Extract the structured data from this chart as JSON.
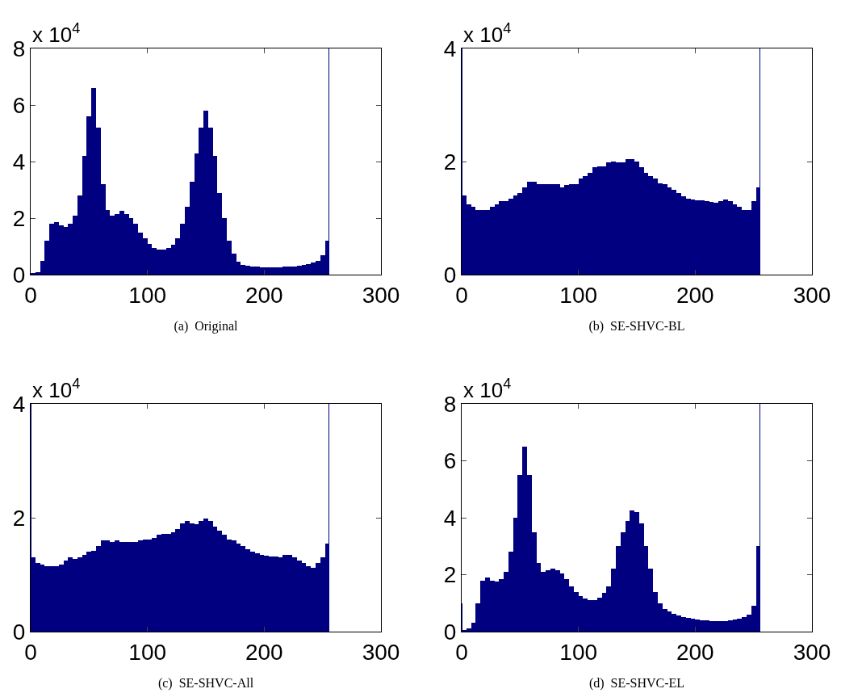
{
  "chart_data": [
    {
      "type": "histogram",
      "xlabel": "(a)  Original",
      "annotations": [
        "x 10$^{4}$"
      ],
      "color": "#000080",
      "xlim": [
        0,
        300
      ],
      "xticks": [
        0,
        100,
        200,
        300
      ],
      "ylim": [
        0,
        8
      ],
      "yticks": [
        0,
        2,
        4,
        6,
        8
      ],
      "bins": [
        0,
        4,
        8,
        12,
        16,
        20,
        24,
        28,
        32,
        36,
        40,
        44,
        48,
        52,
        56,
        60,
        64,
        68,
        72,
        76,
        80,
        84,
        88,
        92,
        96,
        100,
        104,
        108,
        112,
        116,
        120,
        124,
        128,
        132,
        136,
        140,
        144,
        148,
        152,
        156,
        160,
        164,
        168,
        172,
        176,
        180,
        184,
        188,
        192,
        196,
        200,
        204,
        208,
        212,
        216,
        220,
        224,
        228,
        232,
        236,
        240,
        244,
        248,
        252,
        255,
        256
      ],
      "values": [
        0.05,
        0.1,
        0.5,
        1.2,
        1.8,
        1.85,
        1.75,
        1.7,
        1.8,
        2.1,
        2.8,
        4.2,
        5.6,
        6.6,
        5.2,
        3.2,
        2.3,
        2.1,
        2.15,
        2.25,
        2.15,
        2.0,
        1.8,
        1.5,
        1.3,
        1.1,
        0.95,
        0.88,
        0.9,
        0.95,
        1.05,
        1.3,
        1.8,
        2.4,
        3.3,
        4.3,
        5.2,
        5.8,
        5.2,
        4.2,
        2.9,
        2.0,
        1.2,
        0.75,
        0.45,
        0.35,
        0.32,
        0.3,
        0.28,
        0.27,
        0.26,
        0.26,
        0.26,
        0.27,
        0.28,
        0.29,
        0.3,
        0.32,
        0.35,
        0.38,
        0.42,
        0.5,
        0.7,
        1.2,
        8
      ]
    },
    {
      "type": "histogram",
      "xlabel": "(b)  SE-SHVC-BL",
      "annotations": [
        "x 10$^{4}$"
      ],
      "color": "#000080",
      "xlim": [
        0,
        300
      ],
      "xticks": [
        0,
        100,
        200,
        300
      ],
      "ylim": [
        0,
        4
      ],
      "yticks": [
        0,
        2,
        4
      ],
      "bins": [
        0,
        1,
        4,
        8,
        12,
        16,
        20,
        24,
        28,
        32,
        36,
        40,
        44,
        48,
        52,
        56,
        60,
        64,
        68,
        72,
        76,
        80,
        84,
        88,
        92,
        96,
        100,
        104,
        108,
        112,
        116,
        120,
        124,
        128,
        132,
        136,
        140,
        144,
        148,
        152,
        156,
        160,
        164,
        168,
        172,
        176,
        180,
        184,
        188,
        192,
        196,
        200,
        204,
        208,
        212,
        216,
        220,
        224,
        228,
        232,
        236,
        240,
        244,
        248,
        252,
        255,
        256
      ],
      "values": [
        4,
        1.4,
        1.25,
        1.2,
        1.15,
        1.15,
        1.15,
        1.2,
        1.25,
        1.3,
        1.3,
        1.35,
        1.4,
        1.45,
        1.55,
        1.65,
        1.65,
        1.6,
        1.6,
        1.6,
        1.6,
        1.6,
        1.55,
        1.58,
        1.6,
        1.6,
        1.7,
        1.75,
        1.8,
        1.9,
        1.92,
        1.92,
        1.98,
        2.0,
        1.98,
        1.98,
        2.05,
        2.05,
        2.0,
        1.9,
        1.8,
        1.75,
        1.7,
        1.62,
        1.6,
        1.55,
        1.5,
        1.45,
        1.38,
        1.35,
        1.33,
        1.32,
        1.32,
        1.3,
        1.28,
        1.27,
        1.3,
        1.33,
        1.3,
        1.25,
        1.2,
        1.15,
        1.15,
        1.3,
        1.55,
        4
      ]
    },
    {
      "type": "histogram",
      "xlabel": "(c)  SE-SHVC-All",
      "annotations": [
        "x 10$^{4}$"
      ],
      "color": "#000080",
      "xlim": [
        0,
        300
      ],
      "xticks": [
        0,
        100,
        200,
        300
      ],
      "ylim": [
        0,
        4
      ],
      "yticks": [
        0,
        2,
        4
      ],
      "bins": [
        0,
        1,
        4,
        8,
        12,
        16,
        20,
        24,
        28,
        32,
        36,
        40,
        44,
        48,
        52,
        56,
        60,
        64,
        68,
        72,
        76,
        80,
        84,
        88,
        92,
        96,
        100,
        104,
        108,
        112,
        116,
        120,
        124,
        128,
        132,
        136,
        140,
        144,
        148,
        152,
        156,
        160,
        164,
        168,
        172,
        176,
        180,
        184,
        188,
        192,
        196,
        200,
        204,
        208,
        212,
        216,
        220,
        224,
        228,
        232,
        236,
        240,
        244,
        248,
        252,
        255,
        256
      ],
      "values": [
        4,
        1.3,
        1.2,
        1.18,
        1.15,
        1.15,
        1.15,
        1.18,
        1.25,
        1.3,
        1.28,
        1.3,
        1.35,
        1.4,
        1.42,
        1.5,
        1.6,
        1.6,
        1.58,
        1.6,
        1.58,
        1.58,
        1.58,
        1.58,
        1.6,
        1.62,
        1.62,
        1.65,
        1.7,
        1.72,
        1.72,
        1.75,
        1.8,
        1.9,
        1.95,
        1.9,
        1.88,
        1.95,
        1.98,
        1.95,
        1.85,
        1.78,
        1.7,
        1.62,
        1.6,
        1.55,
        1.5,
        1.45,
        1.4,
        1.38,
        1.35,
        1.33,
        1.32,
        1.32,
        1.3,
        1.35,
        1.35,
        1.3,
        1.25,
        1.2,
        1.15,
        1.12,
        1.2,
        1.3,
        1.55,
        4
      ]
    },
    {
      "type": "histogram",
      "xlabel": "(d)  SE-SHVC-EL",
      "annotations": [
        "x 10$^{4}$"
      ],
      "color": "#000080",
      "xlim": [
        0,
        300
      ],
      "xticks": [
        0,
        100,
        200,
        300
      ],
      "ylim": [
        0,
        8
      ],
      "yticks": [
        0,
        2,
        4,
        6,
        8
      ],
      "bins": [
        0,
        1,
        4,
        8,
        12,
        16,
        20,
        24,
        28,
        32,
        36,
        40,
        44,
        48,
        52,
        56,
        60,
        64,
        68,
        72,
        76,
        80,
        84,
        88,
        92,
        96,
        100,
        104,
        108,
        112,
        116,
        120,
        124,
        128,
        132,
        136,
        140,
        144,
        148,
        152,
        156,
        160,
        164,
        168,
        172,
        176,
        180,
        184,
        188,
        192,
        196,
        200,
        204,
        208,
        212,
        216,
        220,
        224,
        228,
        232,
        236,
        240,
        244,
        248,
        252,
        255,
        256
      ],
      "values": [
        1.0,
        0.05,
        0.1,
        0.3,
        1.0,
        1.8,
        1.9,
        1.8,
        1.75,
        1.85,
        2.1,
        2.8,
        4.0,
        5.5,
        6.5,
        5.5,
        3.5,
        2.4,
        2.1,
        2.15,
        2.2,
        2.15,
        2.05,
        1.85,
        1.6,
        1.4,
        1.25,
        1.15,
        1.1,
        1.12,
        1.2,
        1.35,
        1.6,
        2.2,
        3.0,
        3.5,
        3.9,
        4.25,
        4.2,
        3.8,
        3.0,
        2.2,
        1.4,
        1.0,
        0.8,
        0.7,
        0.62,
        0.56,
        0.52,
        0.48,
        0.45,
        0.42,
        0.4,
        0.4,
        0.38,
        0.38,
        0.38,
        0.38,
        0.4,
        0.42,
        0.45,
        0.5,
        0.6,
        0.9,
        3.0,
        8
      ]
    }
  ]
}
